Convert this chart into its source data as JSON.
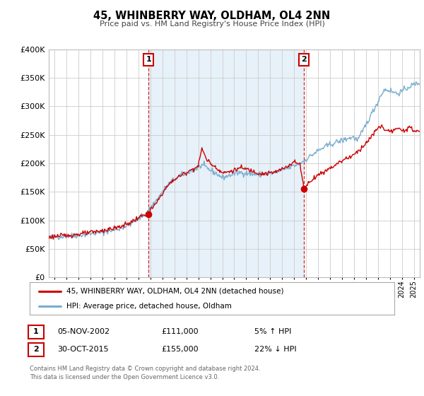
{
  "title": "45, WHINBERRY WAY, OLDHAM, OL4 2NN",
  "subtitle": "Price paid vs. HM Land Registry's House Price Index (HPI)",
  "legend_label_red": "45, WHINBERRY WAY, OLDHAM, OL4 2NN (detached house)",
  "legend_label_blue": "HPI: Average price, detached house, Oldham",
  "transaction1_date": "05-NOV-2002",
  "transaction1_price": "£111,000",
  "transaction1_hpi": "5% ↑ HPI",
  "transaction2_date": "30-OCT-2015",
  "transaction2_price": "£155,000",
  "transaction2_hpi": "22% ↓ HPI",
  "footer1": "Contains HM Land Registry data © Crown copyright and database right 2024.",
  "footer2": "This data is licensed under the Open Government Licence v3.0.",
  "color_red": "#cc0000",
  "color_blue": "#7aadcf",
  "color_shading": "#d8e8f5",
  "ylim": [
    0,
    400000
  ],
  "yticks": [
    0,
    50000,
    100000,
    150000,
    200000,
    250000,
    300000,
    350000,
    400000
  ],
  "xlim_start": 1994.5,
  "xlim_end": 2025.5,
  "transaction1_x": 2002.85,
  "transaction1_y": 111000,
  "transaction2_x": 2015.83,
  "transaction2_y": 155000,
  "background_color": "#ffffff",
  "plot_bg_color": "#ffffff",
  "grid_color": "#cccccc"
}
